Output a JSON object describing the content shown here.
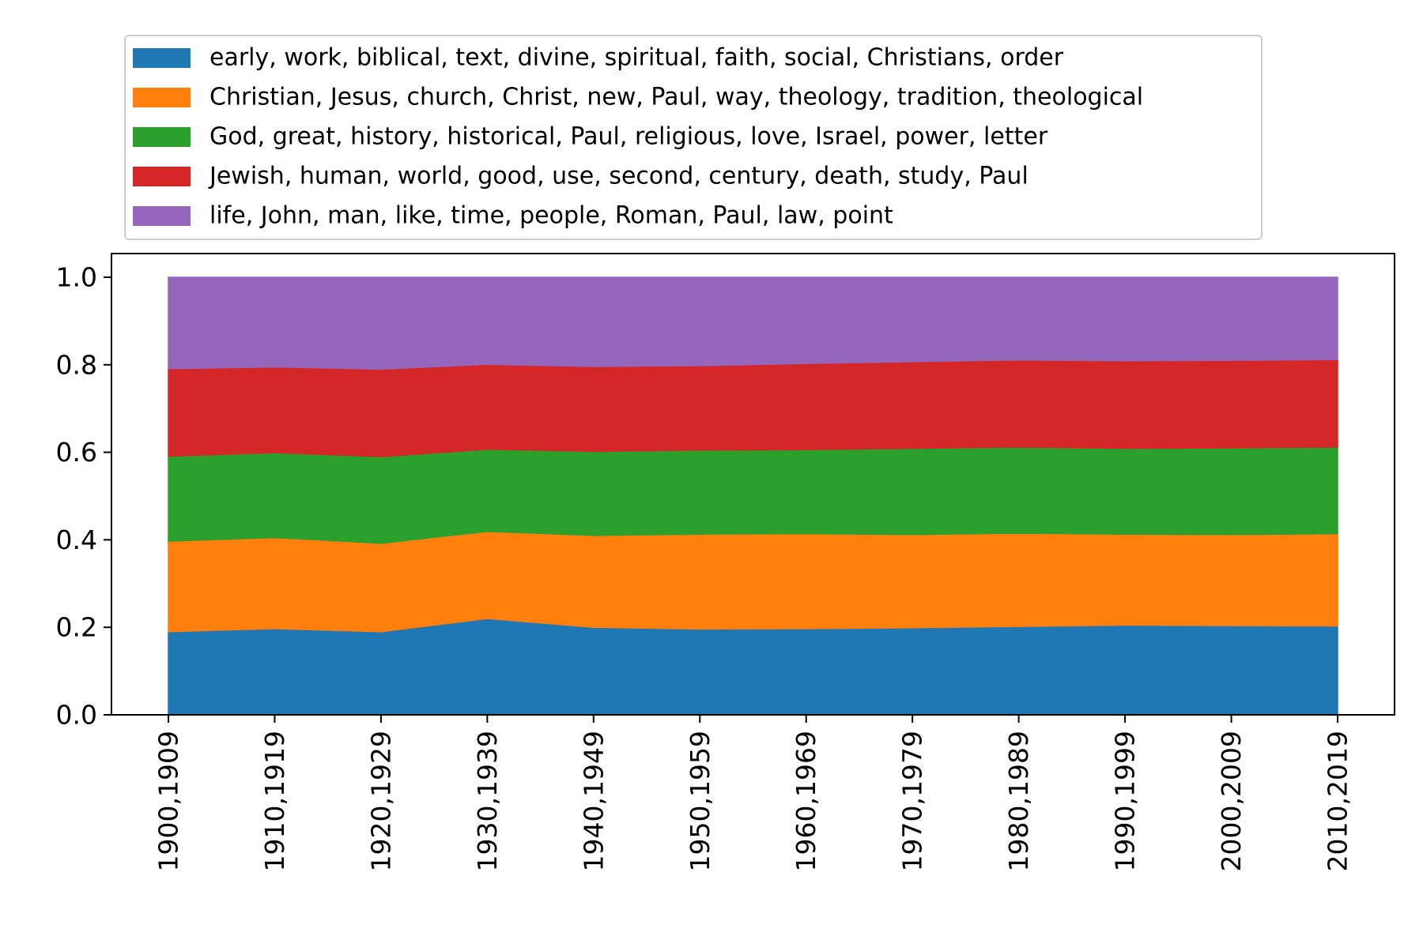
{
  "chart_data": {
    "type": "area",
    "stacked": true,
    "title": "",
    "xlabel": "",
    "ylabel": "",
    "categories": [
      "1900,1909",
      "1910,1919",
      "1920,1929",
      "1930,1939",
      "1940,1949",
      "1950,1959",
      "1960,1969",
      "1970,1979",
      "1980,1989",
      "1990,1999",
      "2000,2009",
      "2010,2019"
    ],
    "ylim": [
      0,
      1.05
    ],
    "yticks": [
      "0.0",
      "0.2",
      "0.4",
      "0.6",
      "0.8",
      "1.0"
    ],
    "ytick_values": [
      0,
      0.2,
      0.4,
      0.6,
      0.8,
      1.0
    ],
    "grid": false,
    "legend_position": "above plot, left",
    "series": [
      {
        "name": "early, work, biblical, text, divine, spiritual, faith, social, Christians, order",
        "color": "#1f77b4",
        "values": [
          0.19,
          0.197,
          0.19,
          0.22,
          0.2,
          0.196,
          0.197,
          0.199,
          0.202,
          0.205,
          0.204,
          0.203
        ]
      },
      {
        "name": "Christian, Jesus, church, Christ, new, Paul, way, theology, tradition, theological",
        "color": "#ff7f0e",
        "values": [
          0.207,
          0.208,
          0.202,
          0.199,
          0.21,
          0.217,
          0.217,
          0.213,
          0.213,
          0.208,
          0.208,
          0.211
        ]
      },
      {
        "name": "God, great, history, historical, Paul, religious, love, Israel, power, letter",
        "color": "#2ca02c",
        "values": [
          0.194,
          0.194,
          0.198,
          0.188,
          0.192,
          0.192,
          0.192,
          0.197,
          0.197,
          0.196,
          0.198,
          0.198
        ]
      },
      {
        "name": "Jewish, human, world, good, use, second, century, death, study, Paul",
        "color": "#d62728",
        "values": [
          0.2,
          0.196,
          0.2,
          0.194,
          0.194,
          0.193,
          0.197,
          0.198,
          0.199,
          0.2,
          0.2,
          0.2
        ]
      },
      {
        "name": "life, John, man, like, time, people, Roman, Paul, law, point",
        "color": "#9467bd",
        "values": [
          0.209,
          0.205,
          0.21,
          0.199,
          0.204,
          0.202,
          0.197,
          0.193,
          0.189,
          0.191,
          0.19,
          0.188
        ]
      }
    ]
  }
}
